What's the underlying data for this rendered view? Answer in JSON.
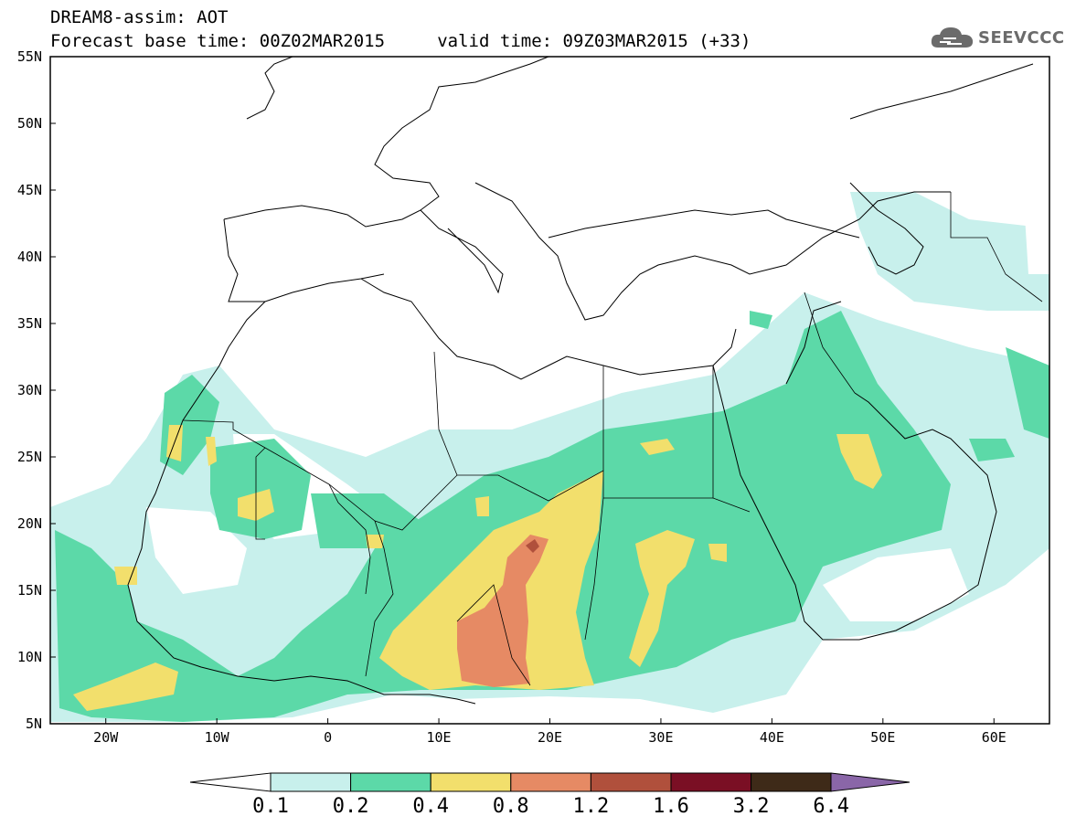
{
  "header": {
    "title_line1": "DREAM8-assim: AOT",
    "title_line2": "Forecast base time: 00Z02MAR2015     valid time: 09Z03MAR2015 (+33)",
    "logo_text": "SEEVCCC",
    "logo_icon": "cloud-icon"
  },
  "map": {
    "lat_labels": [
      "55N",
      "50N",
      "45N",
      "40N",
      "35N",
      "30N",
      "25N",
      "20N",
      "15N",
      "10N",
      "5N"
    ],
    "lon_labels": [
      "20W",
      "10W",
      "0",
      "10E",
      "20E",
      "30E",
      "40E",
      "50E",
      "60E"
    ],
    "lat_range": [
      5,
      55
    ],
    "lon_range": [
      -25,
      65
    ],
    "field": "aerosol optical thickness"
  },
  "colorbar": {
    "levels": [
      "0.1",
      "0.2",
      "0.4",
      "0.8",
      "1.2",
      "1.6",
      "3.2",
      "6.4"
    ],
    "colors": [
      "#ffffff",
      "#c8f0ec",
      "#5cd9a8",
      "#f2df6c",
      "#e68a64",
      "#b0503c",
      "#7a0f24",
      "#3e2a18",
      "#8a66a8"
    ]
  }
}
